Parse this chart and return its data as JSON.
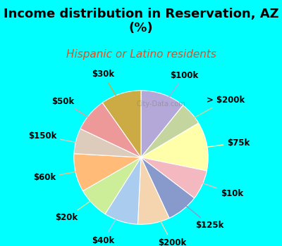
{
  "title": "Income distribution in Reservation, AZ\n(%)",
  "subtitle": "Hispanic or Latino residents",
  "background_color": "#00FFFF",
  "chart_bg_color": "#e8f5e9",
  "watermark": "City-Data.com",
  "slices": [
    {
      "label": "$100k",
      "value": 10.5,
      "color": "#b3a8d8"
    },
    {
      "label": "> $200k",
      "value": 5.5,
      "color": "#c5d5a0"
    },
    {
      "label": "$75k",
      "value": 11.5,
      "color": "#ffffaa"
    },
    {
      "label": "$10k",
      "value": 7.0,
      "color": "#f4b8c0"
    },
    {
      "label": "$125k",
      "value": 7.5,
      "color": "#8899cc"
    },
    {
      "label": "$200k",
      "value": 7.5,
      "color": "#f5d5b0"
    },
    {
      "label": "$40k",
      "value": 8.0,
      "color": "#aaccee"
    },
    {
      "label": "$20k",
      "value": 7.5,
      "color": "#ccee99"
    },
    {
      "label": "$60k",
      "value": 9.0,
      "color": "#ffbb77"
    },
    {
      "label": "$150k",
      "value": 6.0,
      "color": "#ddccbb"
    },
    {
      "label": "$50k",
      "value": 8.0,
      "color": "#ee9999"
    },
    {
      "label": "$30k",
      "value": 9.5,
      "color": "#ccaa44"
    }
  ],
  "title_fontsize": 13,
  "subtitle_fontsize": 11,
  "label_fontsize": 8.5
}
